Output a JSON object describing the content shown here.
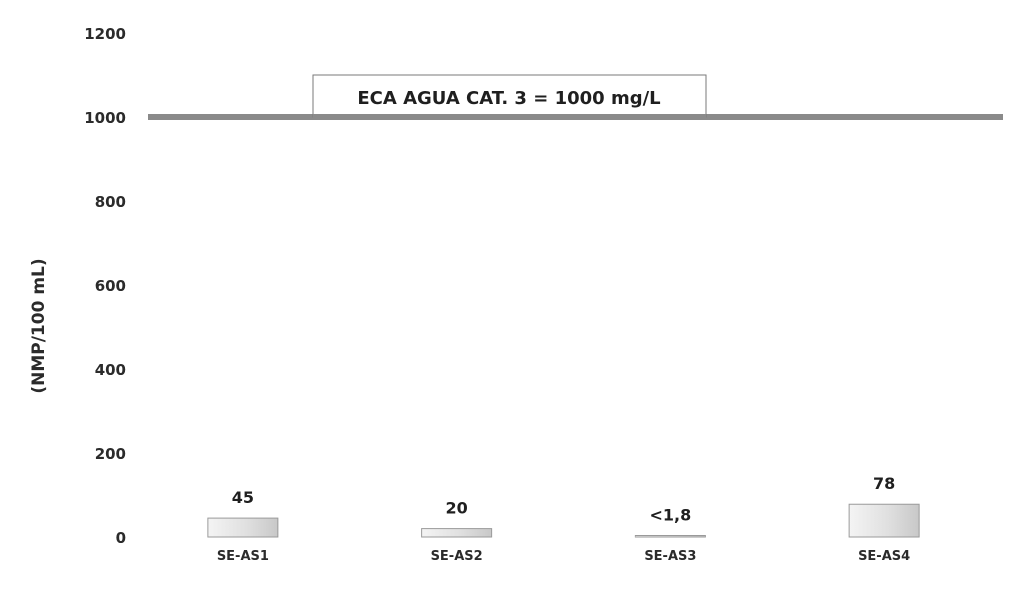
{
  "chart_data": {
    "type": "bar",
    "title": "",
    "xlabel": "",
    "ylabel": "(NMP/100 mL)",
    "ylim": [
      0,
      1200
    ],
    "yticks": [
      0,
      200,
      400,
      600,
      800,
      1000,
      1200
    ],
    "grid": false,
    "categories": [
      "SE-AS1",
      "SE-AS2",
      "SE-AS3",
      "SE-AS4"
    ],
    "values": [
      45,
      20,
      1.8,
      78
    ],
    "value_labels": [
      "45",
      "20",
      "<1,8",
      "78"
    ],
    "reference_line": {
      "value": 1000,
      "label": "ECA AGUA CAT. 3 = 1000 mg/L",
      "color": "#8a8a8a"
    },
    "colors": {
      "bar_fill": "#e2e2e2",
      "bar_edge": "#9a9a9a",
      "axis_text": "#2b2b2b"
    }
  }
}
